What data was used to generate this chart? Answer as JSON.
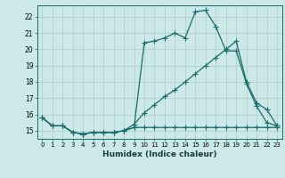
{
  "xlabel": "Humidex (Indice chaleur)",
  "ylabel": "",
  "background_color": "#cde8e8",
  "line_color": "#1a6b6b",
  "xlim": [
    -0.5,
    23.5
  ],
  "ylim": [
    14.5,
    22.7
  ],
  "yticks": [
    15,
    16,
    17,
    18,
    19,
    20,
    21,
    22
  ],
  "xticks": [
    0,
    1,
    2,
    3,
    4,
    5,
    6,
    7,
    8,
    9,
    10,
    11,
    12,
    13,
    14,
    15,
    16,
    17,
    18,
    19,
    20,
    21,
    22,
    23
  ],
  "line1_x": [
    0,
    1,
    2,
    3,
    4,
    5,
    6,
    7,
    8,
    9,
    10,
    11,
    12,
    13,
    14,
    15,
    16,
    17,
    18,
    19,
    20,
    21,
    22,
    23
  ],
  "line1_y": [
    15.8,
    15.3,
    15.3,
    14.9,
    14.8,
    14.9,
    14.9,
    14.9,
    15.0,
    15.2,
    20.4,
    20.5,
    20.7,
    21.0,
    20.7,
    22.3,
    22.4,
    21.4,
    19.9,
    19.9,
    17.9,
    16.5,
    15.5,
    15.3
  ],
  "line2_x": [
    0,
    1,
    2,
    3,
    4,
    5,
    6,
    7,
    8,
    9,
    10,
    11,
    12,
    13,
    14,
    15,
    16,
    17,
    18,
    19,
    20,
    21,
    22,
    23
  ],
  "line2_y": [
    15.8,
    15.3,
    15.3,
    14.9,
    14.8,
    14.9,
    14.9,
    14.9,
    15.0,
    15.4,
    16.1,
    16.6,
    17.1,
    17.5,
    18.0,
    18.5,
    19.0,
    19.5,
    20.0,
    20.5,
    18.0,
    16.7,
    16.3,
    15.3
  ],
  "line3_x": [
    0,
    1,
    2,
    3,
    4,
    5,
    6,
    7,
    8,
    9,
    10,
    11,
    12,
    13,
    14,
    15,
    16,
    17,
    18,
    19,
    20,
    21,
    22,
    23
  ],
  "line3_y": [
    15.8,
    15.3,
    15.3,
    14.9,
    14.8,
    14.9,
    14.9,
    14.9,
    15.0,
    15.2,
    15.2,
    15.2,
    15.2,
    15.2,
    15.2,
    15.2,
    15.2,
    15.2,
    15.2,
    15.2,
    15.2,
    15.2,
    15.2,
    15.2
  ],
  "marker": "+",
  "markersize": 4,
  "markeredgewidth": 0.8,
  "linewidth": 0.9
}
